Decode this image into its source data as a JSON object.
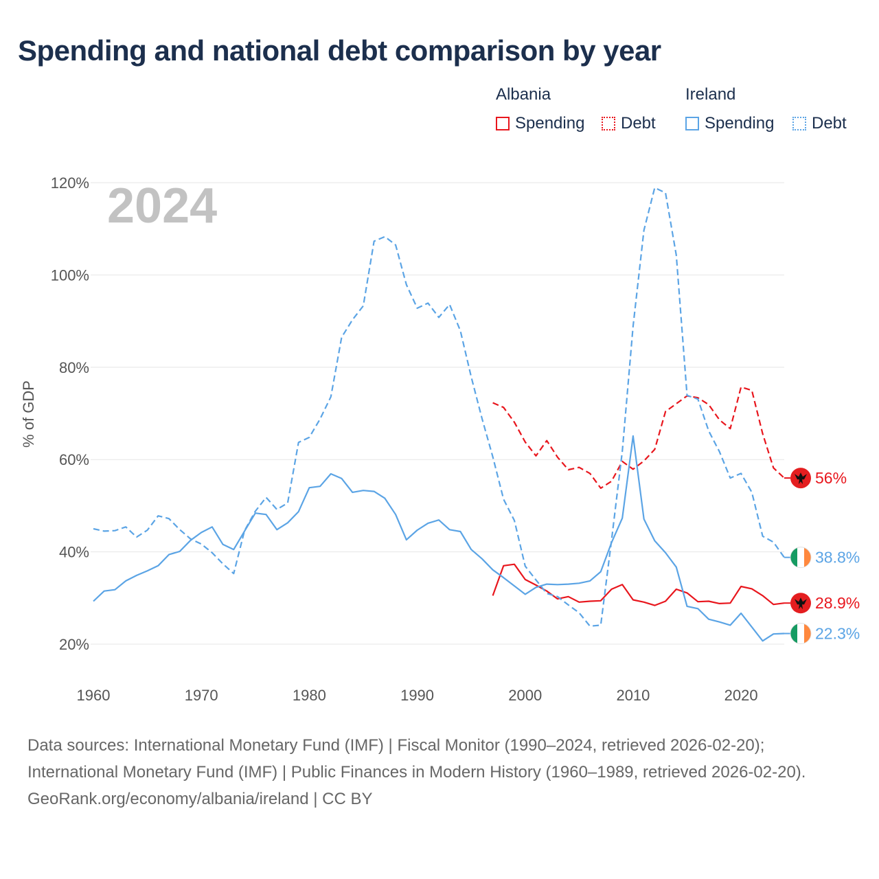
{
  "title": "Spending and national debt comparison by year",
  "legend": {
    "groups": [
      {
        "country": "Albania",
        "spending_label": "Spending",
        "debt_label": "Debt",
        "color": "#e8161d"
      },
      {
        "country": "Ireland",
        "spending_label": "Spending",
        "debt_label": "Debt",
        "color": "#5ba4e5"
      }
    ]
  },
  "footer": {
    "sources": "Data sources: International Monetary Fund (IMF) | Fiscal Monitor (1990–2024, retrieved 2026-02-20); International Monetary Fund (IMF) | Public Finances in Modern History (1960–1989, retrieved 2026-02-20).",
    "attribution": "GeoRank.org/economy/albania/ireland | CC BY"
  },
  "chart_data": {
    "type": "line",
    "year_label": "2024",
    "ylabel": "% of GDP",
    "xlim": [
      1960,
      2024
    ],
    "ylim": [
      15,
      122
    ],
    "x_ticks": [
      1960,
      1970,
      1980,
      1990,
      2000,
      2010,
      2020
    ],
    "y_ticks": [
      20,
      40,
      60,
      80,
      100,
      120
    ],
    "y_tick_labels": [
      "20%",
      "40%",
      "60%",
      "80%",
      "100%",
      "120%"
    ],
    "gridlines": true,
    "series": [
      {
        "name": "Albania Spending",
        "country": "Albania",
        "metric": "Spending",
        "style": "solid",
        "color": "#e8161d",
        "end_label": "28.9%",
        "flag": "albania-flag-icon",
        "x": [
          1997,
          1998,
          1999,
          2000,
          2001,
          2002,
          2003,
          2004,
          2005,
          2006,
          2007,
          2008,
          2009,
          2010,
          2011,
          2012,
          2013,
          2014,
          2015,
          2016,
          2017,
          2018,
          2019,
          2020,
          2021,
          2022,
          2023,
          2024
        ],
        "y": [
          30.5,
          37.0,
          37.3,
          34.0,
          32.8,
          31.5,
          29.8,
          30.3,
          29.1,
          29.3,
          29.4,
          31.9,
          32.9,
          29.6,
          29.1,
          28.4,
          29.3,
          31.9,
          31.1,
          29.2,
          29.3,
          28.8,
          28.9,
          32.5,
          32.0,
          30.5,
          28.6,
          28.9
        ]
      },
      {
        "name": "Albania Debt",
        "country": "Albania",
        "metric": "Debt",
        "style": "dashed",
        "color": "#e8161d",
        "end_label": "56%",
        "flag": "albania-flag-icon",
        "x": [
          1997,
          1998,
          1999,
          2000,
          2001,
          2002,
          2003,
          2004,
          2005,
          2006,
          2007,
          2008,
          2009,
          2010,
          2011,
          2012,
          2013,
          2014,
          2015,
          2016,
          2017,
          2018,
          2019,
          2020,
          2021,
          2022,
          2023,
          2024
        ],
        "y": [
          72.3,
          71.3,
          68.1,
          63.8,
          60.8,
          64.1,
          60.5,
          57.8,
          58.3,
          57.0,
          53.8,
          55.3,
          59.6,
          57.9,
          59.7,
          62.2,
          70.4,
          72.1,
          73.8,
          73.4,
          71.9,
          68.6,
          66.7,
          75.7,
          75.0,
          65.6,
          58.2,
          56.0
        ]
      },
      {
        "name": "Ireland Spending",
        "country": "Ireland",
        "metric": "Spending",
        "style": "solid",
        "color": "#5ba4e5",
        "end_label": "22.3%",
        "flag": "ireland-flag-icon",
        "x": [
          1960,
          1961,
          1962,
          1963,
          1964,
          1965,
          1966,
          1967,
          1968,
          1969,
          1970,
          1971,
          1972,
          1973,
          1974,
          1975,
          1976,
          1977,
          1978,
          1979,
          1980,
          1981,
          1982,
          1983,
          1984,
          1985,
          1986,
          1987,
          1988,
          1989,
          1990,
          1991,
          1992,
          1993,
          1994,
          1995,
          1996,
          1997,
          1998,
          1999,
          2000,
          2001,
          2002,
          2003,
          2004,
          2005,
          2006,
          2007,
          2008,
          2009,
          2010,
          2011,
          2012,
          2013,
          2014,
          2015,
          2016,
          2017,
          2018,
          2019,
          2020,
          2021,
          2022,
          2023,
          2024
        ],
        "y": [
          29.3,
          31.5,
          31.8,
          33.7,
          34.9,
          35.9,
          37.0,
          39.4,
          40.1,
          42.5,
          44.2,
          45.4,
          41.6,
          40.5,
          44.5,
          48.4,
          48.1,
          44.8,
          46.3,
          48.7,
          53.9,
          54.2,
          56.9,
          55.9,
          52.9,
          53.3,
          53.1,
          51.6,
          48.1,
          42.6,
          44.7,
          46.2,
          46.9,
          44.8,
          44.4,
          40.5,
          38.5,
          36.1,
          34.4,
          32.6,
          30.8,
          32.3,
          33.0,
          32.9,
          33.0,
          33.2,
          33.7,
          35.7,
          42.0,
          47.3,
          65.1,
          47.1,
          42.4,
          39.8,
          36.7,
          28.2,
          27.7,
          25.4,
          24.8,
          24.1,
          26.7,
          23.7,
          20.7,
          22.2,
          22.3
        ]
      },
      {
        "name": "Ireland Debt",
        "country": "Ireland",
        "metric": "Debt",
        "style": "dashed",
        "color": "#5ba4e5",
        "end_label": "38.8%",
        "flag": "ireland-flag-icon",
        "x": [
          1960,
          1961,
          1962,
          1963,
          1964,
          1965,
          1966,
          1967,
          1968,
          1969,
          1970,
          1971,
          1972,
          1973,
          1974,
          1975,
          1976,
          1977,
          1978,
          1979,
          1980,
          1981,
          1982,
          1983,
          1984,
          1985,
          1986,
          1987,
          1988,
          1989,
          1990,
          1991,
          1992,
          1993,
          1994,
          1995,
          1996,
          1997,
          1998,
          1999,
          2000,
          2001,
          2002,
          2003,
          2004,
          2005,
          2006,
          2007,
          2008,
          2009,
          2010,
          2011,
          2012,
          2013,
          2014,
          2015,
          2016,
          2017,
          2018,
          2019,
          2020,
          2021,
          2022,
          2023,
          2024
        ],
        "y": [
          45.0,
          44.5,
          44.6,
          45.4,
          43.2,
          44.7,
          47.8,
          47.2,
          44.8,
          42.8,
          41.7,
          39.8,
          37.4,
          35.3,
          44.6,
          48.8,
          51.8,
          49.2,
          50.6,
          63.7,
          64.8,
          68.8,
          73.6,
          86.5,
          90.3,
          93.3,
          107.3,
          108.3,
          106.5,
          97.9,
          92.8,
          93.9,
          90.8,
          93.6,
          87.9,
          77.9,
          68.9,
          60.6,
          51.4,
          46.8,
          36.9,
          33.9,
          31.0,
          30.3,
          28.5,
          26.8,
          23.9,
          24.1,
          42.5,
          61.8,
          88.9,
          109.7,
          118.9,
          117.8,
          104.3,
          73.9,
          73.1,
          66.2,
          61.7,
          56.0,
          57.0,
          52.9,
          43.4,
          42.1,
          38.8
        ]
      }
    ]
  }
}
